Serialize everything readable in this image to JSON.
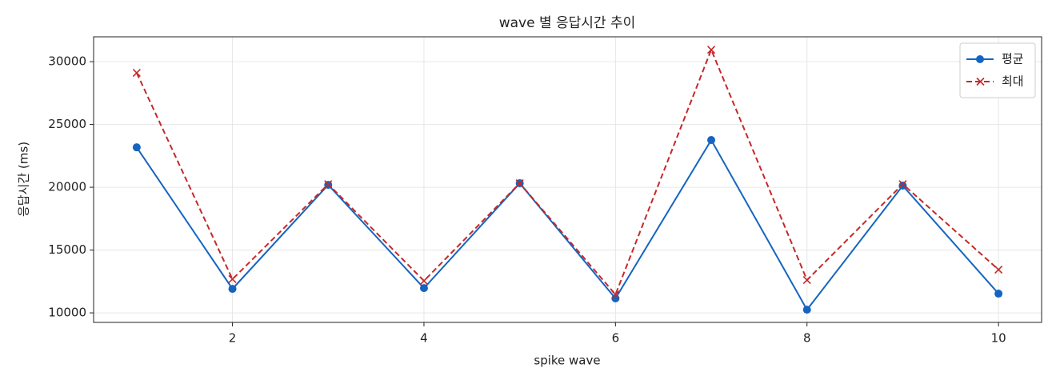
{
  "chart_data": {
    "type": "line",
    "title": "wave 별 응답시간 추이",
    "x_label": "spike wave",
    "y_label": "응답시간 (ms)",
    "x": [
      1,
      2,
      3,
      4,
      5,
      6,
      7,
      8,
      9,
      10
    ],
    "series": [
      {
        "name": "평균",
        "color": "#1565c0",
        "marker": "o",
        "dash": "solid",
        "values": [
          23180,
          11910,
          20190,
          11970,
          20320,
          11150,
          23760,
          10250,
          20130,
          11530
        ]
      },
      {
        "name": "최대",
        "color": "#c62828",
        "marker": "x",
        "dash": "dashed",
        "values": [
          29110,
          12680,
          20250,
          12550,
          20320,
          11460,
          30950,
          12610,
          20250,
          13440
        ]
      }
    ],
    "xlim": [
      0.55,
      10.45
    ],
    "xticks": [
      2,
      4,
      6,
      8,
      10
    ],
    "ylim": [
      9240,
      31980
    ],
    "yticks": [
      10000,
      15000,
      20000,
      25000,
      30000
    ],
    "grid": true,
    "legend": "upper right"
  }
}
